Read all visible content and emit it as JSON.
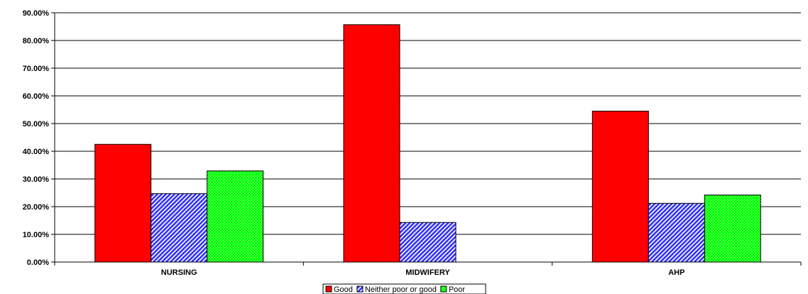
{
  "chart_data": {
    "type": "bar",
    "categories": [
      "NURSING",
      "MIDWIFERY",
      "AHP"
    ],
    "series": [
      {
        "name": "Good",
        "values": [
          42.5,
          85.7,
          54.5
        ],
        "color": "#ff0000",
        "pattern": "solid"
      },
      {
        "name": "Neither poor or good",
        "values": [
          24.7,
          14.3,
          21.2
        ],
        "color": "#3333ff",
        "pattern": "diagonal-stripes"
      },
      {
        "name": "Poor",
        "values": [
          32.9,
          0,
          24.2
        ],
        "color": "#00ff00",
        "pattern": "dots"
      }
    ],
    "y_ticks": [
      "0.00%",
      "10.00%",
      "20.00%",
      "30.00%",
      "40.00%",
      "50.00%",
      "60.00%",
      "70.00%",
      "80.00%",
      "90.00%"
    ],
    "ylim": [
      0,
      90
    ],
    "grid": true,
    "legend_position": "bottom"
  }
}
